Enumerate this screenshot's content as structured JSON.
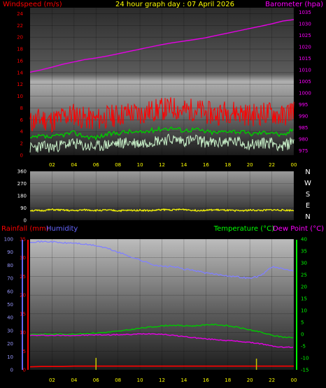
{
  "title": "24 hour graph day : 07 April 2026",
  "colors": {
    "background": "#000000",
    "wind": "#ff0000",
    "wind_avg": "#00c800",
    "wind_low": "#c8f0c8",
    "barometer": "#e600e6",
    "direction": "#ffff00",
    "rainfall": "#ff0000",
    "humidity": "#8080ff",
    "temperature": "#00c800",
    "dew_point": "#e600e6",
    "rain_bar": "#c8c800",
    "left_axis_1": "#ff0000",
    "right_axis_1": "#ff00ff",
    "rain_axis": "#ff0000",
    "humidity_axis": "#6666ff",
    "temp_axis": "#00ff00"
  },
  "x_ticks": [
    "02",
    "04",
    "06",
    "08",
    "10",
    "12",
    "14",
    "16",
    "18",
    "20",
    "22",
    "00"
  ],
  "chart_data": [
    {
      "type": "line",
      "name": "wind-barometer",
      "left_label": "Windspeed (m/s)",
      "right_label": "Barometer (hpa)",
      "left_ticks": [
        "0",
        "2",
        "4",
        "6",
        "8",
        "10",
        "12",
        "14",
        "16",
        "18",
        "20",
        "22",
        "24"
      ],
      "right_ticks": [
        "975",
        "980",
        "985",
        "990",
        "995",
        "1000",
        "1005",
        "1010",
        "1015",
        "1020",
        "1025",
        "1030",
        "1035"
      ],
      "left_range": [
        0,
        25
      ],
      "right_range": [
        973,
        1037
      ],
      "x": [
        0,
        1,
        2,
        3,
        4,
        5,
        6,
        7,
        8,
        9,
        10,
        11,
        12,
        13,
        14,
        15,
        16,
        17,
        18,
        19,
        20,
        21,
        22,
        23,
        24
      ],
      "series": [
        {
          "key": "gust",
          "axis": "left",
          "values": [
            5.5,
            6.2,
            5.8,
            6.5,
            7.0,
            6.2,
            6.0,
            6.5,
            6.8,
            7.2,
            7.0,
            7.5,
            7.8,
            8.0,
            7.5,
            7.8,
            7.2,
            7.0,
            7.5,
            7.2,
            6.8,
            7.0,
            7.2,
            6.5,
            8.0
          ]
        },
        {
          "key": "average",
          "axis": "left",
          "values": [
            2.8,
            3.2,
            3.0,
            3.5,
            3.8,
            3.2,
            3.0,
            3.5,
            3.8,
            4.0,
            3.8,
            4.2,
            4.5,
            4.6,
            4.2,
            4.4,
            4.0,
            3.8,
            4.2,
            4.0,
            3.6,
            3.8,
            4.0,
            3.2,
            4.5
          ]
        },
        {
          "key": "low",
          "axis": "left",
          "values": [
            1.2,
            1.5,
            1.3,
            1.8,
            2.0,
            1.5,
            1.4,
            1.8,
            2.0,
            2.2,
            2.0,
            2.4,
            2.6,
            2.7,
            2.4,
            2.6,
            2.2,
            2.0,
            2.4,
            2.2,
            1.8,
            2.0,
            2.2,
            1.4,
            2.5
          ]
        },
        {
          "key": "barometer",
          "axis": "right",
          "values": [
            1009.0,
            1010.0,
            1011.2,
            1012.5,
            1013.5,
            1014.5,
            1015.2,
            1016.0,
            1017.0,
            1018.0,
            1019.0,
            1020.0,
            1021.0,
            1021.8,
            1022.5,
            1023.2,
            1024.0,
            1025.0,
            1026.0,
            1027.0,
            1028.0,
            1029.0,
            1030.0,
            1031.2,
            1031.8
          ]
        }
      ]
    },
    {
      "type": "line",
      "name": "wind-direction",
      "left_ticks": [
        "0",
        "90",
        "180",
        "270",
        "360"
      ],
      "right_ticks": [
        "N",
        "E",
        "S",
        "W",
        "N"
      ],
      "y_range": [
        0,
        360
      ],
      "x": [
        0,
        1,
        2,
        3,
        4,
        5,
        6,
        7,
        8,
        9,
        10,
        11,
        12,
        13,
        14,
        15,
        16,
        17,
        18,
        19,
        20,
        21,
        22,
        23,
        24
      ],
      "series": [
        {
          "key": "direction",
          "values": [
            72,
            70,
            78,
            74,
            70,
            76,
            72,
            74,
            70,
            72,
            74,
            70,
            78,
            76,
            80,
            72,
            74,
            76,
            72,
            70,
            74,
            72,
            76,
            74,
            72
          ]
        }
      ]
    },
    {
      "type": "line",
      "name": "rain-humidity-temperature",
      "top_left_labels": [
        "Rainfall (mm)",
        "Humidity"
      ],
      "top_right_labels": [
        "Temperature (°C)",
        "Dew Point (°C)"
      ],
      "humidity_ticks": [
        "0",
        "10",
        "20",
        "30",
        "40",
        "50",
        "60",
        "70",
        "80",
        "90",
        "100"
      ],
      "rain_ticks": [
        "0",
        "5",
        "10",
        "15",
        "20",
        "25",
        "30",
        "35"
      ],
      "temp_ticks": [
        "-15",
        "-10",
        "-5",
        "0",
        "5",
        "10",
        "15",
        "20",
        "25",
        "30",
        "35",
        "40"
      ],
      "humidity_range": [
        0,
        100
      ],
      "rain_range": [
        0,
        35
      ],
      "temp_range": [
        -15,
        40
      ],
      "x": [
        0,
        1,
        2,
        3,
        4,
        5,
        6,
        7,
        8,
        9,
        10,
        11,
        12,
        13,
        14,
        15,
        16,
        17,
        18,
        19,
        20,
        21,
        22,
        23,
        24
      ],
      "series": [
        {
          "key": "humidity",
          "values": [
            98,
            98,
            98,
            97,
            97,
            96,
            95,
            93,
            90,
            87,
            84,
            81,
            79,
            79,
            77,
            76,
            74,
            73,
            72,
            71,
            70,
            72,
            79,
            77,
            76
          ]
        },
        {
          "key": "temperature",
          "values": [
            0.0,
            0.0,
            0.0,
            0.0,
            0.0,
            0.3,
            0.5,
            0.8,
            1.2,
            1.8,
            2.5,
            3.0,
            3.5,
            3.8,
            3.5,
            3.5,
            4.0,
            4.0,
            3.5,
            2.8,
            1.8,
            0.8,
            -0.5,
            -1.2,
            -1.5
          ]
        },
        {
          "key": "dew_point",
          "values": [
            -0.5,
            -0.5,
            -0.5,
            -0.5,
            -0.5,
            -0.4,
            -0.3,
            -0.3,
            -0.2,
            -0.2,
            0.1,
            0.2,
            0.0,
            -0.5,
            -1.0,
            -1.5,
            -2.0,
            -2.3,
            -2.7,
            -3.0,
            -3.5,
            -4.0,
            -5.0,
            -5.5,
            -5.5
          ]
        },
        {
          "key": "rainfall",
          "values": [
            0.8,
            0.9,
            0.9,
            0.9,
            1.0,
            1.0,
            1.0,
            1.0,
            1.0,
            1.0,
            1.0,
            1.0,
            1.0,
            1.0,
            1.0,
            1.0,
            1.0,
            1.0,
            1.0,
            1.0,
            1.0,
            1.0,
            1.0,
            1.0,
            1.0
          ]
        }
      ],
      "rain_events": [
        {
          "x": 6.0,
          "value": 3.2
        },
        {
          "x": 20.6,
          "value": 3.0
        }
      ]
    }
  ]
}
